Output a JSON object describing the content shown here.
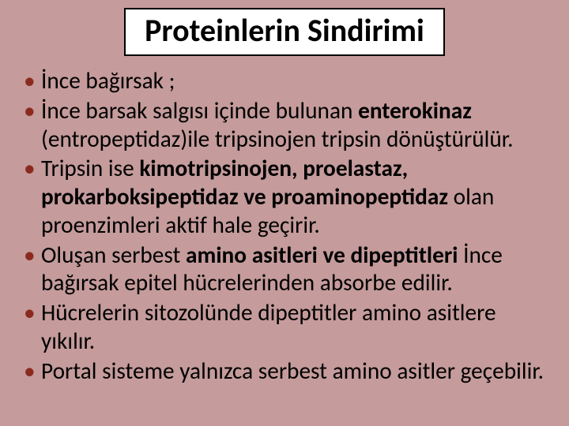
{
  "slide": {
    "background_color": "#c59b9b",
    "title_box": {
      "background_color": "#ffffff",
      "border_color": "#000000",
      "text": "Proteinlerin Sindirimi",
      "text_color": "#000000",
      "font_size_pt": 30
    },
    "body": {
      "text_color": "#000000",
      "bullet_color": "#8a2a1f",
      "font_size_pt": 22,
      "items": [
        {
          "runs": [
            {
              "t": "İnce bağırsak ;",
              "b": false
            }
          ]
        },
        {
          "runs": [
            {
              "t": "İnce barsak salgısı içinde bulunan ",
              "b": false
            },
            {
              "t": "enterokinaz",
              "b": true
            },
            {
              "t": " (entropeptidaz)ile tripsinojen tripsin dönüştürülür.",
              "b": false
            }
          ]
        },
        {
          "runs": [
            {
              "t": " Tripsin ise ",
              "b": false
            },
            {
              "t": "kimotripsinojen, proelastaz, prokarboksipeptidaz ve proaminopeptidaz ",
              "b": true
            },
            {
              "t": "olan proenzimleri aktif hale geçirir.",
              "b": false
            }
          ]
        },
        {
          "runs": [
            {
              "t": " Oluşan serbest ",
              "b": false
            },
            {
              "t": "amino asitleri ve dipeptitleri ",
              "b": true
            },
            {
              "t": "İnce bağırsak epitel hücrelerinden absorbe edilir.",
              "b": false
            }
          ]
        },
        {
          "runs": [
            {
              "t": "Hücrelerin sitozolünde dipeptitler amino asitlere yıkılır.",
              "b": false
            }
          ]
        },
        {
          "runs": [
            {
              "t": "Portal sisteme yalnızca  serbest amino asitler geçebilir.",
              "b": false
            }
          ]
        }
      ]
    }
  }
}
